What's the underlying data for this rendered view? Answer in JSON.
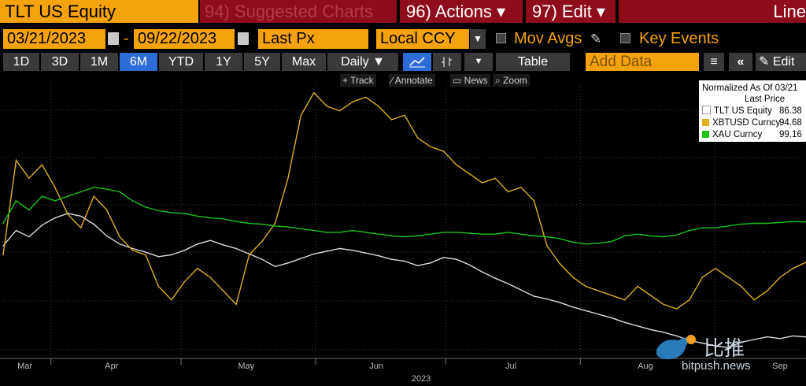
{
  "header": {
    "security": "TLT US Equity",
    "suggested": "94) Suggested Charts",
    "actions": "96) Actions ▾",
    "edit": "97) Edit ▾",
    "line": "Line"
  },
  "controls": {
    "start_date": "03/21/2023",
    "dash": "-",
    "end_date": "09/22/2023",
    "field": "Last Px",
    "currency": "Local CCY",
    "mov_avgs": "Mov Avgs",
    "key_events": "Key Events"
  },
  "ranges": [
    "1D",
    "3D",
    "1M",
    "6M",
    "YTD",
    "1Y",
    "5Y",
    "Max"
  ],
  "active_range": "6M",
  "toolbar": {
    "period": "Daily ▼",
    "table": "Table",
    "add_data_placeholder": "Add Data",
    "edit": "Edit"
  },
  "tools": [
    "Track",
    "Annotate",
    "News",
    "Zoom"
  ],
  "legend": {
    "title": "Normalized As Of 03/21",
    "subtitle": "Last Price",
    "items": [
      {
        "name": "TLT US Equity",
        "value": "86.38",
        "color": "#ffffff"
      },
      {
        "name": "XBTUSD Curncy",
        "value": "94.68",
        "color": "#e0b021"
      },
      {
        "name": "XAU Curncy",
        "value": "99.16",
        "color": "#17c417"
      }
    ]
  },
  "axis": {
    "months": [
      "Mar",
      "Apr",
      "May",
      "Jun",
      "Jul",
      "Aug",
      "Sep"
    ],
    "year": "2023"
  },
  "watermark": {
    "cn": "比推",
    "url": "bitpush.news"
  },
  "chart_data": {
    "type": "line",
    "series": [
      {
        "name": "TLT US Equity",
        "color": "#dcdcdc",
        "values": [
          96.5,
          98.2,
          97.5,
          98.8,
          99.6,
          100.1,
          99.8,
          98.9,
          97.6,
          96.7,
          96.2,
          95.8,
          95.3,
          95.5,
          96.0,
          96.7,
          97.1,
          96.6,
          96.2,
          95.6,
          95.0,
          94.2,
          94.6,
          95.1,
          95.6,
          95.9,
          96.2,
          96.0,
          95.7,
          95.4,
          95.0,
          94.8,
          94.3,
          94.6,
          95.2,
          95.0,
          94.4,
          93.6,
          92.9,
          92.3,
          91.6,
          90.9,
          90.6,
          90.2,
          89.7,
          89.3,
          88.9,
          88.5,
          88.0,
          87.6,
          87.2,
          86.9,
          86.5,
          86.0,
          85.7,
          85.4,
          85.2,
          85.8,
          86.1,
          86.4,
          86.2,
          86.5,
          86.38
        ]
      },
      {
        "name": "XBTUSD Curncy",
        "color": "#e0b021",
        "values": [
          95.5,
          106.0,
          104.0,
          105.5,
          103.0,
          100.0,
          98.5,
          102.0,
          100.5,
          97.5,
          96.0,
          95.5,
          92.0,
          90.5,
          92.5,
          94.0,
          93.0,
          91.5,
          90.0,
          95.5,
          97.0,
          99.0,
          104.0,
          111.0,
          113.5,
          112.0,
          111.5,
          112.5,
          113.0,
          112.0,
          110.5,
          111.0,
          108.5,
          107.5,
          107.0,
          105.5,
          104.5,
          103.5,
          104.0,
          102.5,
          103.0,
          101.5,
          96.5,
          94.5,
          93.0,
          92.0,
          91.5,
          91.0,
          90.5,
          92.0,
          91.0,
          90.0,
          89.5,
          90.5,
          93.0,
          94.0,
          93.0,
          92.0,
          90.5,
          91.5,
          93.0,
          94.0,
          94.68
        ]
      },
      {
        "name": "XAU Curncy",
        "color": "#17c417",
        "values": [
          99.0,
          101.5,
          100.5,
          102.0,
          101.5,
          102.0,
          102.5,
          103.0,
          102.8,
          102.5,
          101.5,
          100.8,
          100.4,
          100.2,
          100.1,
          99.8,
          99.6,
          99.5,
          99.2,
          99.0,
          98.9,
          98.7,
          98.6,
          98.4,
          98.2,
          98.0,
          98.0,
          98.2,
          98.0,
          97.8,
          97.6,
          97.5,
          97.6,
          97.8,
          98.0,
          98.0,
          97.9,
          97.8,
          97.8,
          98.0,
          97.8,
          97.6,
          97.5,
          97.3,
          96.9,
          96.7,
          96.8,
          97.0,
          97.6,
          97.8,
          97.6,
          97.5,
          97.7,
          98.2,
          98.5,
          98.5,
          98.7,
          98.9,
          99.0,
          99.0,
          99.1,
          99.2,
          99.16
        ]
      }
    ],
    "x_start": "2023-03-21",
    "x_end": "2023-09-22",
    "ylim": [
      84,
      114
    ],
    "grid": true,
    "legend": "top-right"
  }
}
